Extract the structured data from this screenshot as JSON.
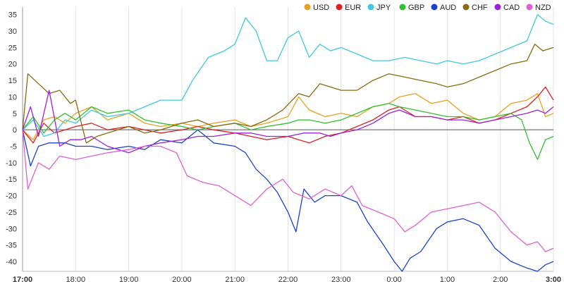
{
  "chart_data": {
    "type": "line",
    "title": "",
    "xlabel": "",
    "ylabel": "",
    "x_ticks": [
      "17:00",
      "18:00",
      "19:00",
      "20:00",
      "21:00",
      "22:00",
      "23:00",
      "0:00",
      "1:00",
      "2:00",
      "3:00"
    ],
    "x_ticks_bold": [
      "17:00",
      "3:00"
    ],
    "xlim": [
      0,
      10
    ],
    "ylim": [
      -43,
      36
    ],
    "y_ticks": [
      35,
      30,
      25,
      20,
      15,
      10,
      5,
      0,
      -5,
      -10,
      -15,
      -20,
      -25,
      -30,
      -35,
      -40
    ],
    "grid": "vertical",
    "zero_line": true,
    "legend_position": "top-right",
    "series": [
      {
        "name": "USD",
        "color": "#e8a020",
        "points": [
          [
            0,
            0
          ],
          [
            0.2,
            -3
          ],
          [
            0.4,
            3
          ],
          [
            0.6,
            4
          ],
          [
            0.8,
            2
          ],
          [
            1,
            5
          ],
          [
            1.3,
            7
          ],
          [
            1.6,
            3
          ],
          [
            2,
            5
          ],
          [
            2.3,
            2
          ],
          [
            2.6,
            1
          ],
          [
            3,
            2
          ],
          [
            3.3,
            1
          ],
          [
            3.6,
            2
          ],
          [
            4,
            3
          ],
          [
            4.3,
            1
          ],
          [
            4.6,
            2
          ],
          [
            5,
            4
          ],
          [
            5.2,
            10
          ],
          [
            5.4,
            6
          ],
          [
            5.7,
            4
          ],
          [
            6,
            5
          ],
          [
            6.3,
            4
          ],
          [
            6.6,
            7
          ],
          [
            6.9,
            8
          ],
          [
            7.1,
            10
          ],
          [
            7.4,
            11
          ],
          [
            7.7,
            8
          ],
          [
            8,
            9
          ],
          [
            8.3,
            5
          ],
          [
            8.6,
            3
          ],
          [
            8.9,
            4
          ],
          [
            9.2,
            8
          ],
          [
            9.5,
            9
          ],
          [
            9.7,
            11
          ],
          [
            9.85,
            4
          ],
          [
            10,
            5
          ]
        ]
      },
      {
        "name": "EUR",
        "color": "#dd2020",
        "points": [
          [
            0,
            0
          ],
          [
            0.2,
            -4
          ],
          [
            0.4,
            2
          ],
          [
            0.6,
            -1
          ],
          [
            0.8,
            0
          ],
          [
            1,
            1
          ],
          [
            1.3,
            2
          ],
          [
            1.6,
            0
          ],
          [
            2,
            1
          ],
          [
            2.3,
            0
          ],
          [
            2.6,
            -1
          ],
          [
            3,
            0
          ],
          [
            3.3,
            1
          ],
          [
            3.6,
            0
          ],
          [
            4,
            -1
          ],
          [
            4.3,
            -2
          ],
          [
            4.6,
            -3
          ],
          [
            5,
            -2
          ],
          [
            5.2,
            -3
          ],
          [
            5.4,
            -4
          ],
          [
            5.7,
            -2
          ],
          [
            6,
            -1
          ],
          [
            6.3,
            1
          ],
          [
            6.6,
            3
          ],
          [
            6.9,
            6
          ],
          [
            7.1,
            7
          ],
          [
            7.4,
            4
          ],
          [
            7.7,
            4
          ],
          [
            8,
            3
          ],
          [
            8.3,
            4
          ],
          [
            8.6,
            2
          ],
          [
            8.9,
            3
          ],
          [
            9.2,
            5
          ],
          [
            9.5,
            7
          ],
          [
            9.7,
            10
          ],
          [
            9.85,
            13
          ],
          [
            10,
            9
          ]
        ]
      },
      {
        "name": "JPY",
        "color": "#40c8e0",
        "points": [
          [
            0,
            0
          ],
          [
            0.2,
            3
          ],
          [
            0.4,
            -2
          ],
          [
            0.6,
            -1
          ],
          [
            0.8,
            3
          ],
          [
            1,
            2
          ],
          [
            1.3,
            6
          ],
          [
            1.6,
            4
          ],
          [
            2,
            5
          ],
          [
            2.3,
            7
          ],
          [
            2.6,
            9
          ],
          [
            3,
            9
          ],
          [
            3.2,
            15
          ],
          [
            3.5,
            22
          ],
          [
            3.8,
            24
          ],
          [
            4,
            26
          ],
          [
            4.2,
            34
          ],
          [
            4.4,
            30
          ],
          [
            4.6,
            21
          ],
          [
            4.8,
            21
          ],
          [
            5,
            28
          ],
          [
            5.2,
            30
          ],
          [
            5.4,
            22
          ],
          [
            5.6,
            26
          ],
          [
            5.8,
            24
          ],
          [
            6,
            25
          ],
          [
            6.3,
            23
          ],
          [
            6.6,
            21
          ],
          [
            6.9,
            21
          ],
          [
            7.2,
            22
          ],
          [
            7.5,
            21
          ],
          [
            7.8,
            20
          ],
          [
            8,
            21
          ],
          [
            8.3,
            20
          ],
          [
            8.6,
            21
          ],
          [
            8.9,
            23
          ],
          [
            9.2,
            25
          ],
          [
            9.5,
            27
          ],
          [
            9.7,
            35
          ],
          [
            9.85,
            33
          ],
          [
            10,
            32
          ]
        ]
      },
      {
        "name": "GBP",
        "color": "#30c030",
        "points": [
          [
            0,
            0
          ],
          [
            0.2,
            4
          ],
          [
            0.4,
            -1
          ],
          [
            0.6,
            3
          ],
          [
            0.8,
            5
          ],
          [
            1,
            3
          ],
          [
            1.3,
            7
          ],
          [
            1.6,
            5
          ],
          [
            2,
            6
          ],
          [
            2.3,
            3
          ],
          [
            2.6,
            2
          ],
          [
            3,
            1
          ],
          [
            3.3,
            0
          ],
          [
            3.6,
            1
          ],
          [
            4,
            2
          ],
          [
            4.3,
            0
          ],
          [
            4.6,
            1
          ],
          [
            5,
            2
          ],
          [
            5.2,
            3
          ],
          [
            5.4,
            3
          ],
          [
            5.7,
            2
          ],
          [
            6,
            3
          ],
          [
            6.3,
            5
          ],
          [
            6.6,
            7
          ],
          [
            6.9,
            8
          ],
          [
            7.1,
            7
          ],
          [
            7.4,
            6
          ],
          [
            7.7,
            5
          ],
          [
            8,
            4
          ],
          [
            8.3,
            4
          ],
          [
            8.6,
            3
          ],
          [
            8.9,
            4
          ],
          [
            9.2,
            5
          ],
          [
            9.4,
            3
          ],
          [
            9.55,
            -4
          ],
          [
            9.7,
            -9
          ],
          [
            9.85,
            -3
          ],
          [
            10,
            -2
          ]
        ]
      },
      {
        "name": "AUD",
        "color": "#1a44c4",
        "points": [
          [
            0,
            0
          ],
          [
            0.15,
            -11
          ],
          [
            0.3,
            -5
          ],
          [
            0.5,
            -4
          ],
          [
            0.8,
            -4
          ],
          [
            1,
            -5
          ],
          [
            1.3,
            -5
          ],
          [
            1.6,
            -6
          ],
          [
            2,
            -5
          ],
          [
            2.3,
            -6
          ],
          [
            2.6,
            -3
          ],
          [
            3,
            -4
          ],
          [
            3.3,
            0
          ],
          [
            3.6,
            -4
          ],
          [
            4,
            -5
          ],
          [
            4.2,
            -7
          ],
          [
            4.4,
            -12
          ],
          [
            4.6,
            -15
          ],
          [
            4.8,
            -19
          ],
          [
            5,
            -25
          ],
          [
            5.15,
            -31
          ],
          [
            5.3,
            -18
          ],
          [
            5.5,
            -22
          ],
          [
            5.7,
            -20
          ],
          [
            6,
            -20
          ],
          [
            6.3,
            -22
          ],
          [
            6.5,
            -28
          ],
          [
            6.8,
            -35
          ],
          [
            7,
            -40
          ],
          [
            7.15,
            -43
          ],
          [
            7.3,
            -39
          ],
          [
            7.5,
            -37
          ],
          [
            7.8,
            -30
          ],
          [
            8,
            -28
          ],
          [
            8.3,
            -27
          ],
          [
            8.6,
            -29
          ],
          [
            8.9,
            -36
          ],
          [
            9.2,
            -40
          ],
          [
            9.5,
            -42
          ],
          [
            9.7,
            -43
          ],
          [
            9.85,
            -41
          ],
          [
            10,
            -40
          ]
        ]
      },
      {
        "name": "CHF",
        "color": "#8a6a10",
        "points": [
          [
            0,
            0
          ],
          [
            0.1,
            17
          ],
          [
            0.3,
            14
          ],
          [
            0.5,
            11
          ],
          [
            0.7,
            12
          ],
          [
            0.9,
            8
          ],
          [
            1,
            9
          ],
          [
            1.2,
            -4
          ],
          [
            1.4,
            -2
          ],
          [
            1.6,
            -1
          ],
          [
            2,
            1
          ],
          [
            2.3,
            -1
          ],
          [
            2.6,
            0
          ],
          [
            3,
            2
          ],
          [
            3.3,
            3
          ],
          [
            3.6,
            1
          ],
          [
            4,
            2
          ],
          [
            4.3,
            1
          ],
          [
            4.6,
            3
          ],
          [
            4.9,
            6
          ],
          [
            5.2,
            11
          ],
          [
            5.4,
            10
          ],
          [
            5.6,
            14
          ],
          [
            5.8,
            13
          ],
          [
            6,
            12
          ],
          [
            6.3,
            12
          ],
          [
            6.6,
            15
          ],
          [
            6.9,
            17
          ],
          [
            7.2,
            16
          ],
          [
            7.5,
            15
          ],
          [
            7.8,
            14
          ],
          [
            8,
            13
          ],
          [
            8.3,
            14
          ],
          [
            8.6,
            16
          ],
          [
            8.9,
            18
          ],
          [
            9.2,
            20
          ],
          [
            9.5,
            21
          ],
          [
            9.65,
            26
          ],
          [
            9.8,
            24
          ],
          [
            10,
            25
          ]
        ]
      },
      {
        "name": "CAD",
        "color": "#9a22d8",
        "points": [
          [
            0,
            0
          ],
          [
            0.15,
            7
          ],
          [
            0.3,
            -2
          ],
          [
            0.5,
            12
          ],
          [
            0.7,
            -5
          ],
          [
            0.9,
            -3
          ],
          [
            1.1,
            -3
          ],
          [
            1.3,
            -2
          ],
          [
            1.6,
            -5
          ],
          [
            2,
            -7
          ],
          [
            2.3,
            -5
          ],
          [
            2.6,
            -4
          ],
          [
            3,
            -3
          ],
          [
            3.3,
            -2
          ],
          [
            3.6,
            -2
          ],
          [
            4,
            -1
          ],
          [
            4.3,
            -1
          ],
          [
            4.6,
            -2
          ],
          [
            5,
            -2
          ],
          [
            5.3,
            -1
          ],
          [
            5.6,
            -1
          ],
          [
            5.8,
            -2
          ],
          [
            6,
            -1
          ],
          [
            6.3,
            0
          ],
          [
            6.6,
            2
          ],
          [
            6.9,
            5
          ],
          [
            7.1,
            6
          ],
          [
            7.4,
            4
          ],
          [
            7.7,
            4
          ],
          [
            8,
            3
          ],
          [
            8.3,
            3
          ],
          [
            8.6,
            2
          ],
          [
            8.9,
            3
          ],
          [
            9.2,
            4
          ],
          [
            9.5,
            5
          ],
          [
            9.7,
            6
          ],
          [
            9.85,
            5
          ],
          [
            10,
            7
          ]
        ]
      },
      {
        "name": "NZD",
        "color": "#e060d0",
        "points": [
          [
            0,
            0
          ],
          [
            0.1,
            -18
          ],
          [
            0.3,
            -10
          ],
          [
            0.5,
            -12
          ],
          [
            0.7,
            -8
          ],
          [
            1,
            -9
          ],
          [
            1.3,
            -8
          ],
          [
            1.6,
            -7
          ],
          [
            2,
            -6
          ],
          [
            2.3,
            -5
          ],
          [
            2.6,
            -5
          ],
          [
            2.9,
            -7
          ],
          [
            3.1,
            -14
          ],
          [
            3.4,
            -16
          ],
          [
            3.7,
            -17
          ],
          [
            4,
            -20
          ],
          [
            4.3,
            -23
          ],
          [
            4.6,
            -18
          ],
          [
            4.9,
            -15
          ],
          [
            5.1,
            -19
          ],
          [
            5.4,
            -21
          ],
          [
            5.7,
            -18
          ],
          [
            6,
            -20
          ],
          [
            6.2,
            -17
          ],
          [
            6.4,
            -23
          ],
          [
            6.7,
            -25
          ],
          [
            7,
            -27
          ],
          [
            7.2,
            -31
          ],
          [
            7.4,
            -29
          ],
          [
            7.7,
            -25
          ],
          [
            8,
            -24
          ],
          [
            8.3,
            -23
          ],
          [
            8.6,
            -22
          ],
          [
            8.9,
            -25
          ],
          [
            9.2,
            -31
          ],
          [
            9.5,
            -35
          ],
          [
            9.7,
            -34
          ],
          [
            9.85,
            -37
          ],
          [
            10,
            -36
          ]
        ]
      }
    ]
  }
}
